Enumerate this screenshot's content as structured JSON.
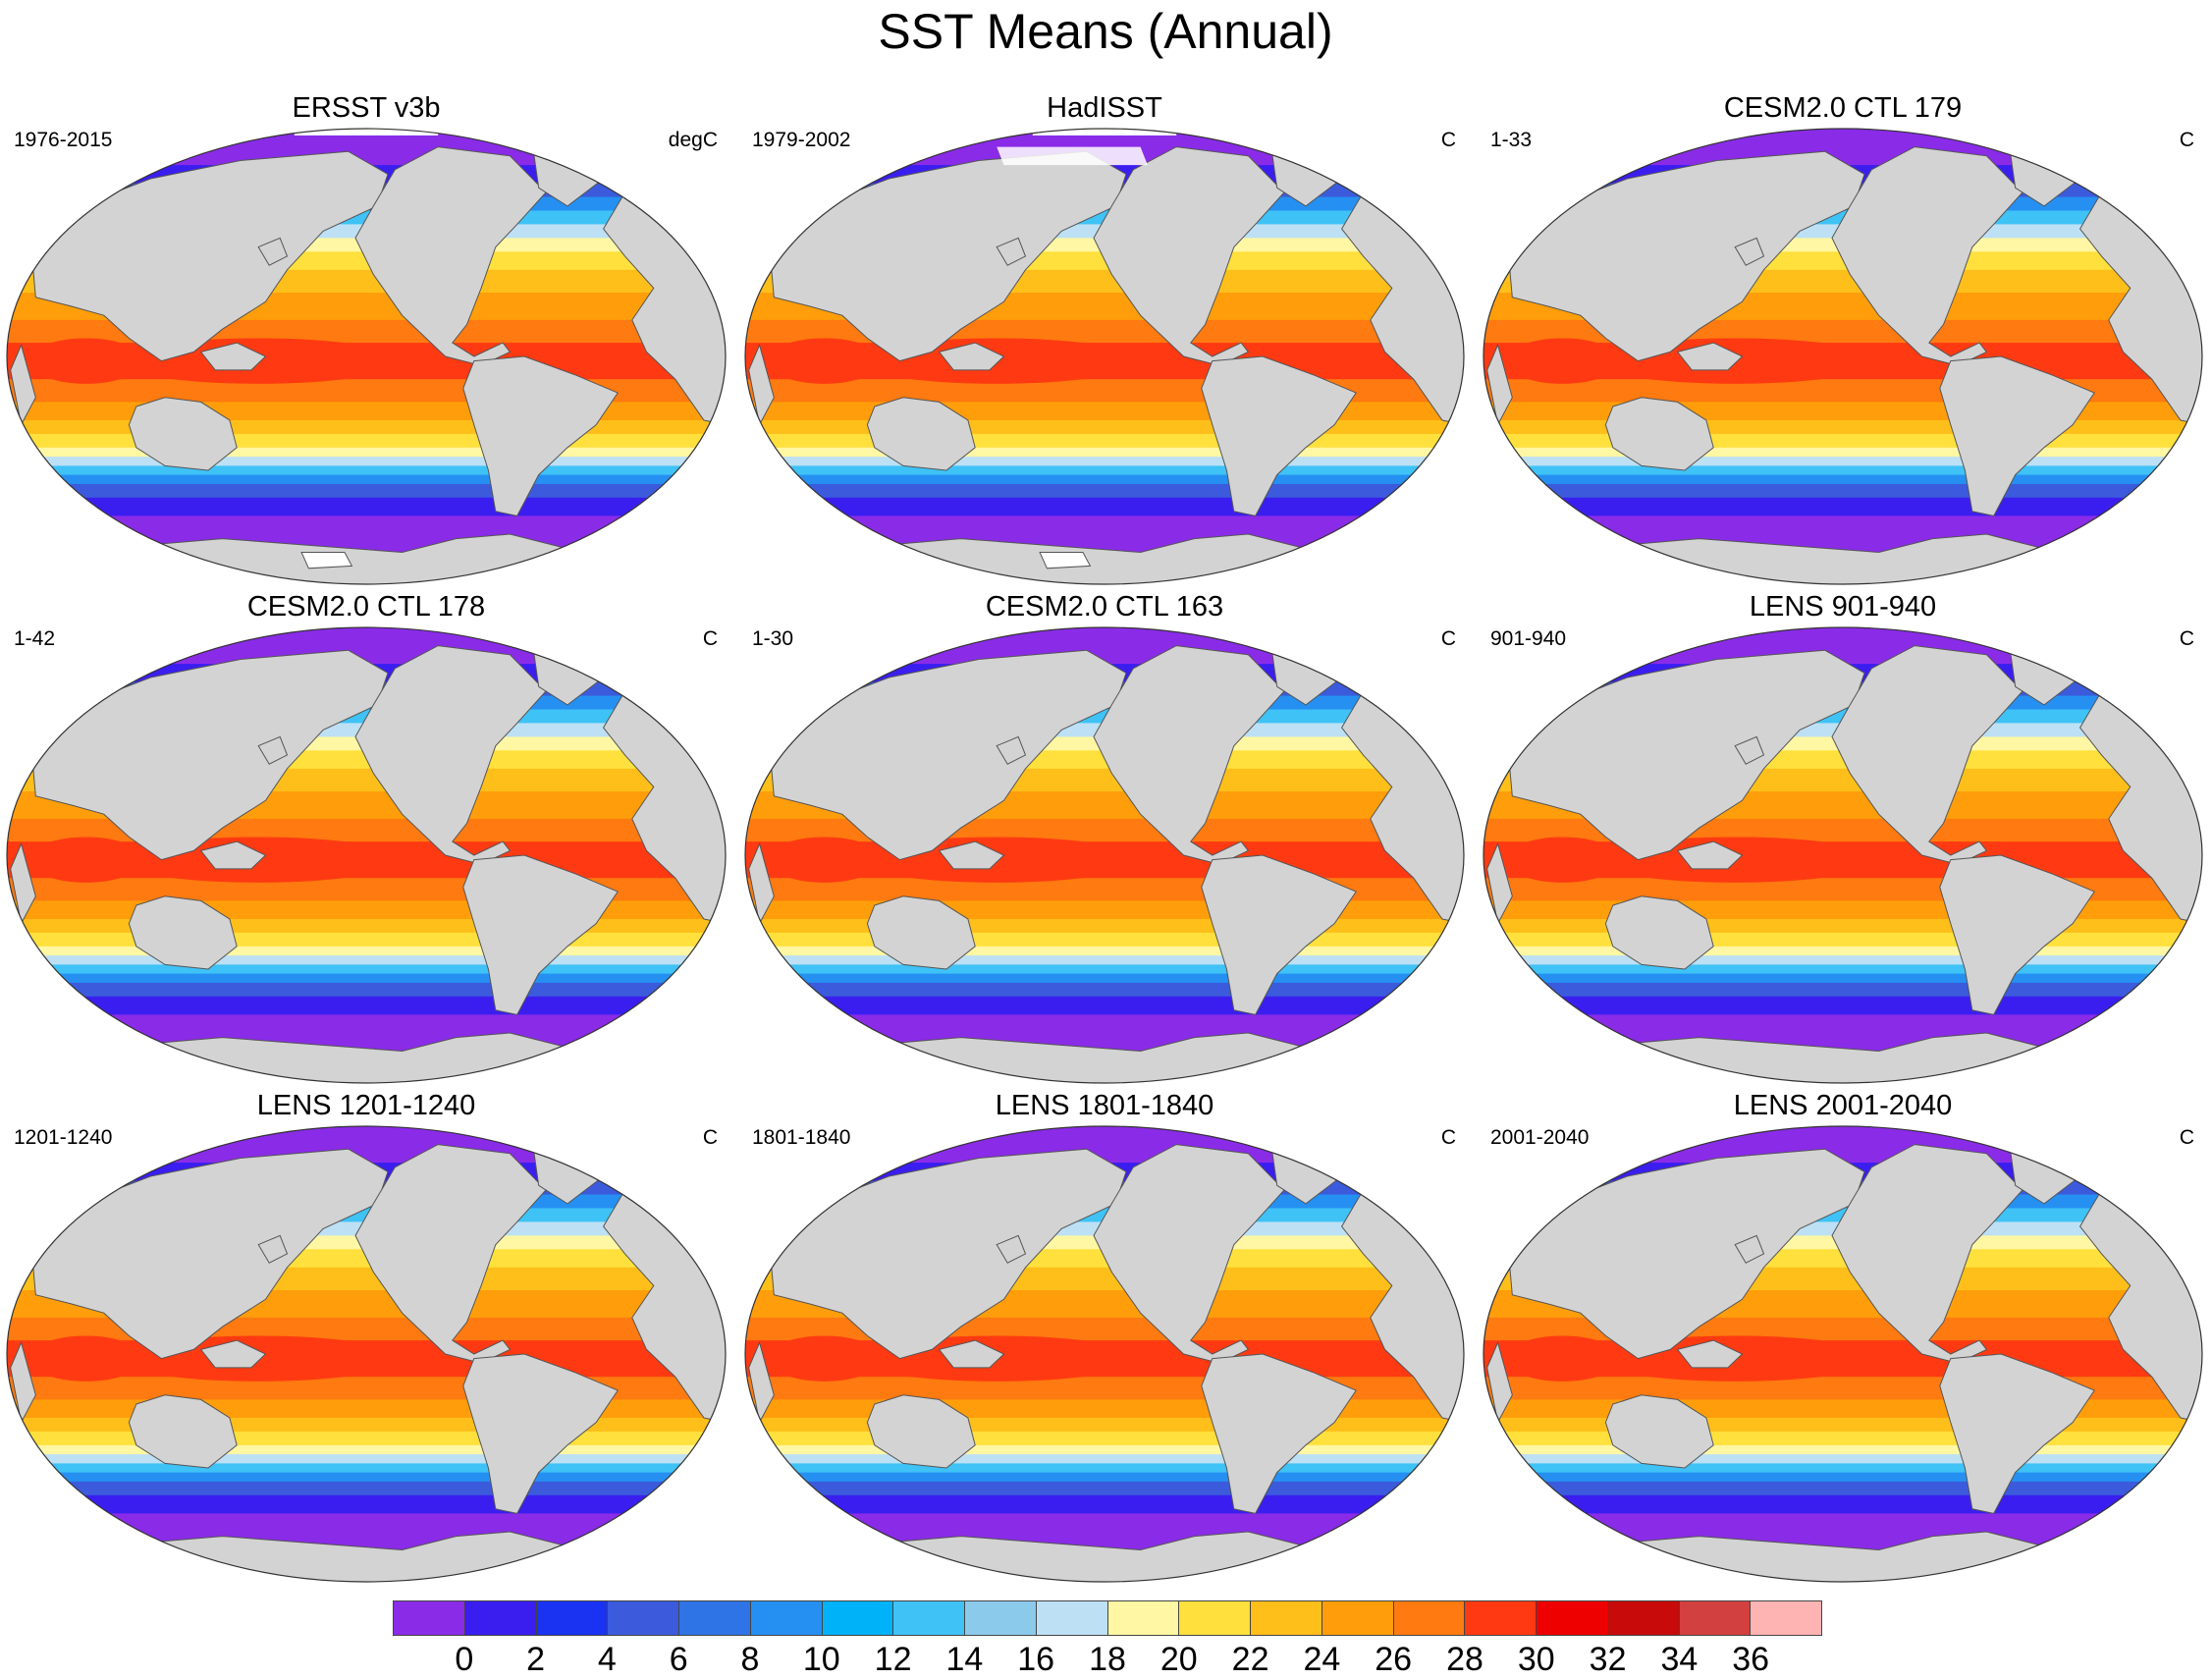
{
  "title": "SST Means (Annual)",
  "panels": [
    {
      "title": "ERSST v3b",
      "period": "1976-2015",
      "units": "degC",
      "variant": "obs1"
    },
    {
      "title": "HadISST",
      "period": "1979-2002",
      "units": "C",
      "variant": "obs2"
    },
    {
      "title": "CESM2.0 CTL 179",
      "period": "1-33",
      "units": "C",
      "variant": "model"
    },
    {
      "title": "CESM2.0 CTL 178",
      "period": "1-42",
      "units": "C",
      "variant": "model"
    },
    {
      "title": "CESM2.0 CTL 163",
      "period": "1-30",
      "units": "C",
      "variant": "model"
    },
    {
      "title": "LENS 901-940",
      "period": "901-940",
      "units": "C",
      "variant": "model"
    },
    {
      "title": "LENS 1201-1240",
      "period": "1201-1240",
      "units": "C",
      "variant": "model"
    },
    {
      "title": "LENS 1801-1840",
      "period": "1801-1840",
      "units": "C",
      "variant": "model"
    },
    {
      "title": "LENS 2001-2040",
      "period": "2001-2040",
      "units": "C",
      "variant": "model"
    }
  ],
  "colorbar": {
    "colors": [
      "#8a2be8",
      "#3a1ef0",
      "#1a32f2",
      "#3b5bdc",
      "#2f74e6",
      "#2590f2",
      "#00b2f8",
      "#3fc2f6",
      "#8ccaec",
      "#bde0f4",
      "#fff7a3",
      "#ffe03c",
      "#ffbf1a",
      "#ff9e0a",
      "#ff7a10",
      "#ff3a12",
      "#ee0000",
      "#c80a0a",
      "#d24040",
      "#ffb4b4"
    ],
    "tick_labels": [
      "0",
      "2",
      "4",
      "6",
      "8",
      "10",
      "12",
      "14",
      "16",
      "18",
      "20",
      "22",
      "24",
      "26",
      "28",
      "30",
      "32",
      "34",
      "36"
    ]
  },
  "map_colors": {
    "land": "#d3d3d3",
    "ocean_bands": [
      "#8a2be8",
      "#3a1ef0",
      "#3b5bdc",
      "#2590f2",
      "#3fc2f6",
      "#bde0f4",
      "#fff7a3",
      "#ffe03c",
      "#ffbf1a",
      "#ff9e0a",
      "#ff7a10",
      "#ff3a12"
    ]
  }
}
